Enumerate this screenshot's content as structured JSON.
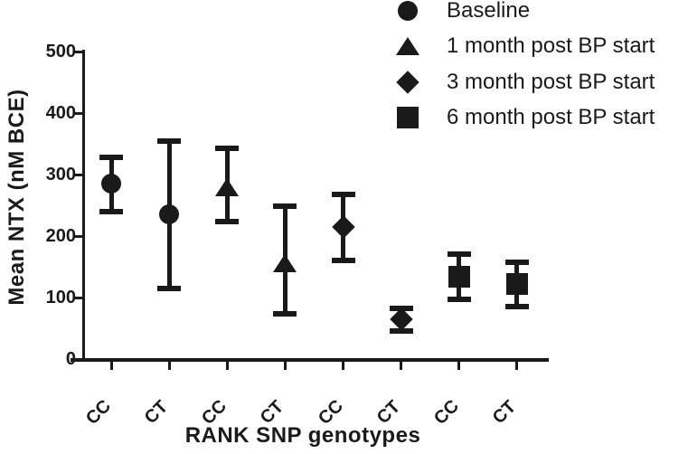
{
  "figure": {
    "ink_color": "#1a1a1a",
    "background_color": "#ffffff"
  },
  "chart_data": {
    "type": "scatter",
    "title": "",
    "xlabel": "RANK SNP genotypes",
    "ylabel": "Mean NTX (nM BCE)",
    "ylim": [
      0,
      500
    ],
    "yticks": [
      0,
      100,
      200,
      300,
      400,
      500
    ],
    "grid": false,
    "legend_position": "top-right",
    "error_bars": "mean with upper/lower caps",
    "categories": [
      "CC",
      "CT",
      "CC",
      "CT",
      "CC",
      "CT",
      "CC",
      "CT"
    ],
    "series": [
      {
        "name": "Baseline",
        "marker": "circle",
        "points": [
          {
            "x_index": 0,
            "genotype": "CC",
            "mean": 285,
            "upper": 328,
            "lower": 240
          },
          {
            "x_index": 1,
            "genotype": "CT",
            "mean": 235,
            "upper": 355,
            "lower": 115
          }
        ]
      },
      {
        "name": "1 month post BP start",
        "marker": "triangle",
        "points": [
          {
            "x_index": 2,
            "genotype": "CC",
            "mean": 280,
            "upper": 343,
            "lower": 224
          },
          {
            "x_index": 3,
            "genotype": "CT",
            "mean": 156,
            "upper": 249,
            "lower": 73
          }
        ]
      },
      {
        "name": "3 month post BP start",
        "marker": "diamond",
        "points": [
          {
            "x_index": 4,
            "genotype": "CC",
            "mean": 215,
            "upper": 268,
            "lower": 161
          },
          {
            "x_index": 5,
            "genotype": "CT",
            "mean": 64,
            "upper": 83,
            "lower": 45
          }
        ]
      },
      {
        "name": "6 month post BP start",
        "marker": "square",
        "points": [
          {
            "x_index": 6,
            "genotype": "CC",
            "mean": 134,
            "upper": 170,
            "lower": 97
          },
          {
            "x_index": 7,
            "genotype": "CT",
            "mean": 122,
            "upper": 157,
            "lower": 85
          }
        ]
      }
    ]
  }
}
